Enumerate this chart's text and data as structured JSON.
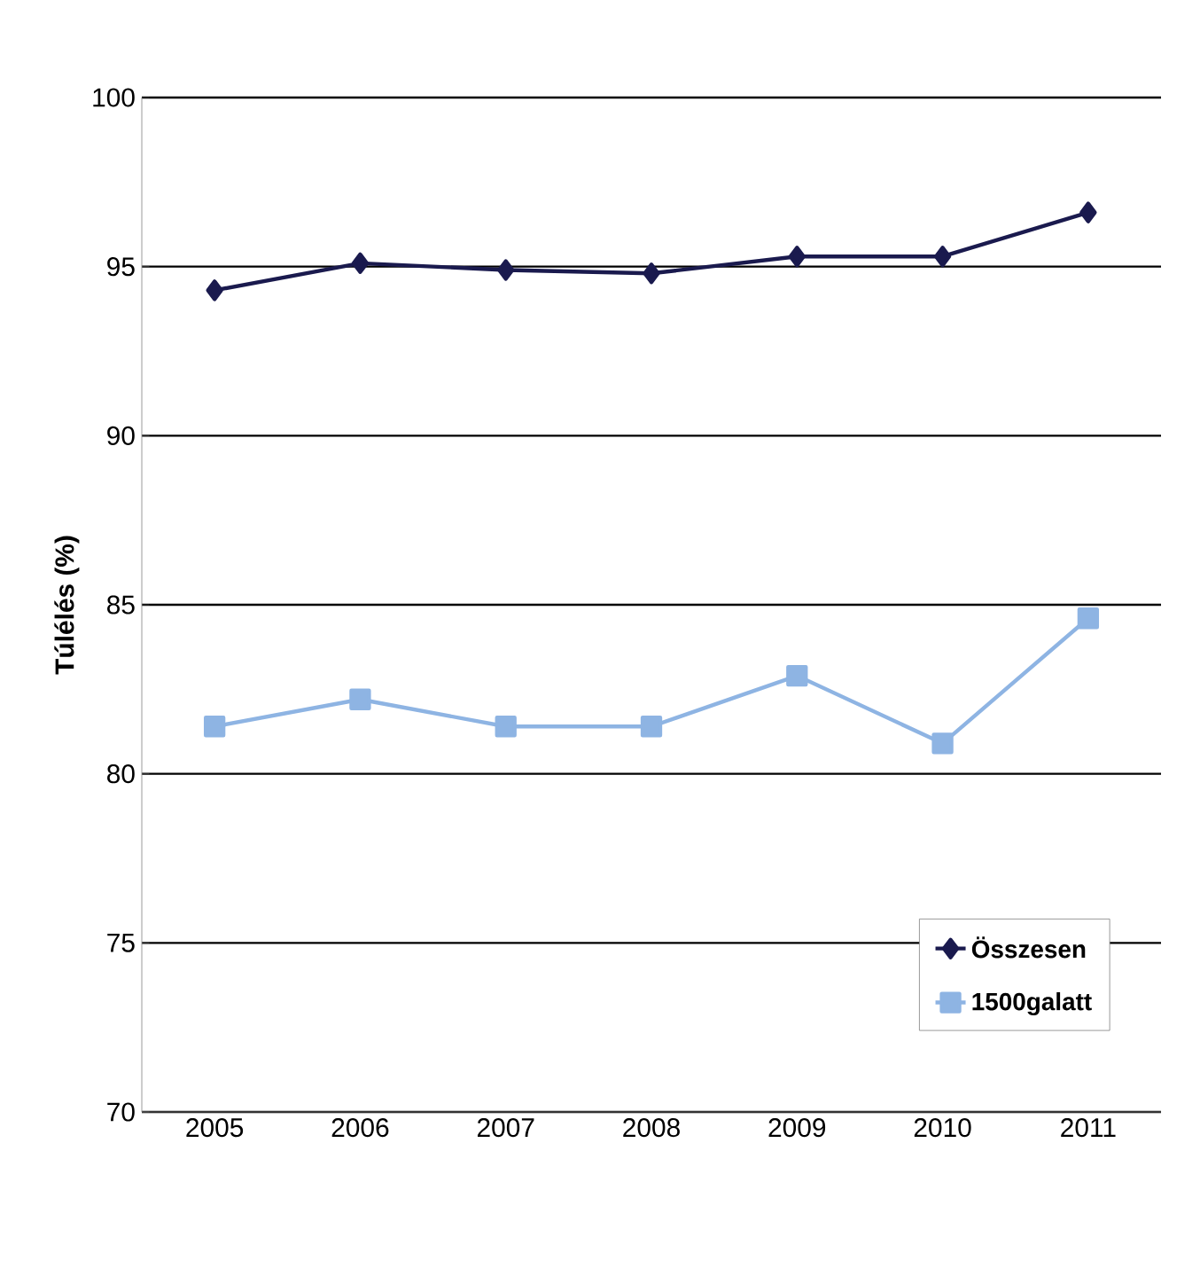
{
  "chart_data": {
    "type": "line",
    "ylabel": "Túlélés (%)",
    "categories": [
      "2005",
      "2006",
      "2007",
      "2008",
      "2009",
      "2010",
      "2011"
    ],
    "series": [
      {
        "name": "Összesen",
        "color": "#1a1a4e",
        "marker": "diamond",
        "values": [
          94.3,
          95.1,
          94.9,
          94.8,
          95.3,
          95.3,
          96.6
        ]
      },
      {
        "name": "1500galatt",
        "color": "#8eb4e3",
        "marker": "square",
        "values": [
          81.4,
          82.2,
          81.4,
          81.4,
          82.9,
          80.9,
          84.6
        ]
      }
    ],
    "ylim": [
      70,
      100
    ],
    "yticks": [
      70,
      75,
      80,
      85,
      90,
      95,
      100
    ],
    "grid": "y",
    "legend": "bottom right",
    "line_style": "solid"
  }
}
